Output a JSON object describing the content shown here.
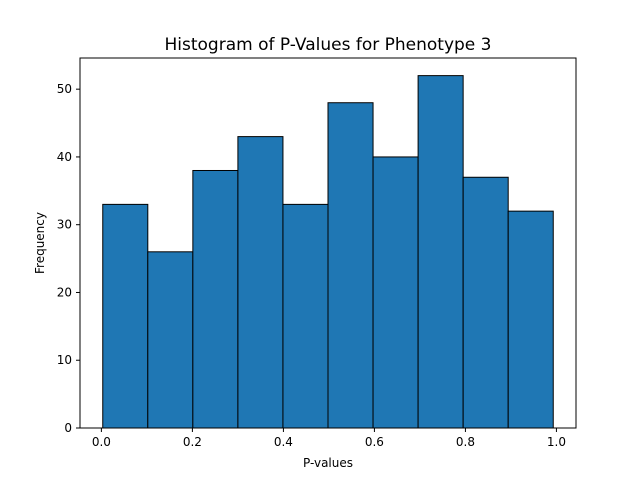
{
  "chart_data": {
    "type": "bar",
    "title": "Histogram of P-Values for Phenotype 3",
    "xlabel": "P-values",
    "ylabel": "Frequency",
    "bins": [
      {
        "start": 0.003,
        "end": 0.102,
        "count": 33
      },
      {
        "start": 0.102,
        "end": 0.201,
        "count": 26
      },
      {
        "start": 0.201,
        "end": 0.3,
        "count": 38
      },
      {
        "start": 0.3,
        "end": 0.399,
        "count": 43
      },
      {
        "start": 0.399,
        "end": 0.498,
        "count": 33
      },
      {
        "start": 0.498,
        "end": 0.597,
        "count": 48
      },
      {
        "start": 0.597,
        "end": 0.696,
        "count": 40
      },
      {
        "start": 0.696,
        "end": 0.795,
        "count": 52
      },
      {
        "start": 0.795,
        "end": 0.894,
        "count": 37
      },
      {
        "start": 0.894,
        "end": 0.993,
        "count": 32
      }
    ],
    "xlim": [
      -0.047,
      1.043
    ],
    "ylim": [
      0,
      54.6
    ],
    "xticks": [
      0.0,
      0.2,
      0.4,
      0.6,
      0.8,
      1.0
    ],
    "xtick_labels": [
      "0.0",
      "0.2",
      "0.4",
      "0.6",
      "0.8",
      "1.0"
    ],
    "yticks": [
      0,
      10,
      20,
      30,
      40,
      50
    ],
    "ytick_labels": [
      "0",
      "10",
      "20",
      "30",
      "40",
      "50"
    ],
    "grid": false,
    "colors": {
      "bar_fill": "#1f77b4",
      "bar_edge": "#000000",
      "axis": "#000000"
    }
  }
}
